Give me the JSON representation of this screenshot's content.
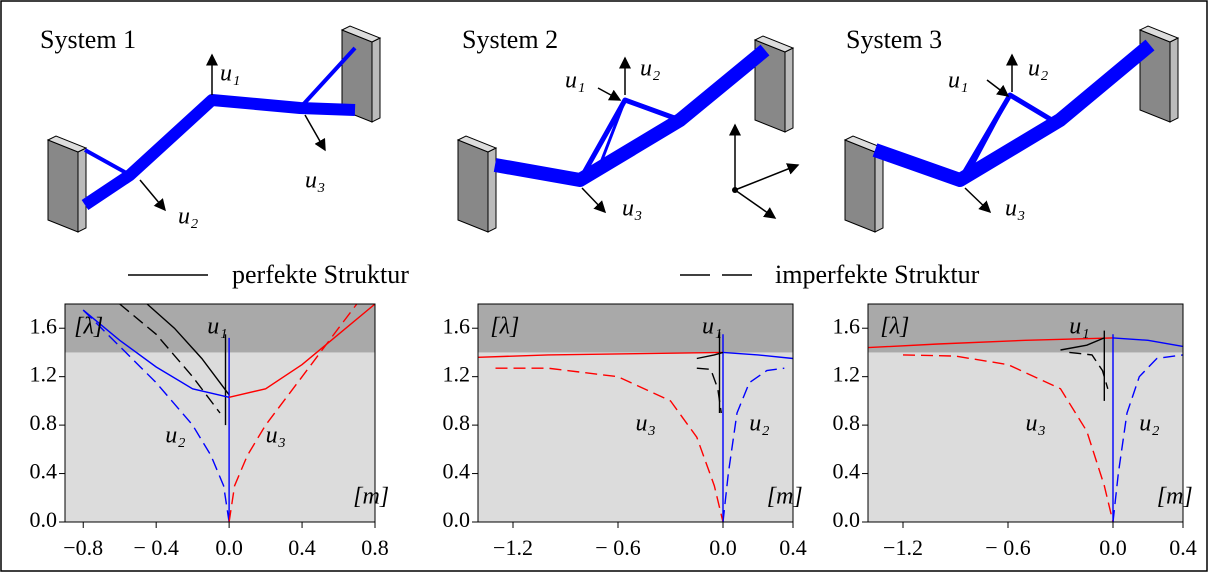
{
  "illustrations": [
    {
      "title": "System 1",
      "labels": [
        "u₁",
        "u₂",
        "u₃"
      ]
    },
    {
      "title": "System 2",
      "labels": [
        "u₁",
        "u₂",
        "u₃"
      ]
    },
    {
      "title": "System 3",
      "labels": [
        "u₁",
        "u₂",
        "u₃"
      ]
    }
  ],
  "legend": {
    "solid": "perfekte Struktur",
    "dashed": "imperfekte Struktur"
  },
  "chart_data": [
    {
      "type": "line",
      "xlim": [
        -0.9,
        0.8
      ],
      "ylim": [
        0,
        1.8
      ],
      "shade_above": 1.4,
      "xticks": [
        {
          "value": -0.8,
          "label": "−0.8"
        },
        {
          "value": -0.4,
          "label": "− 0.4"
        },
        {
          "value": 0,
          "label": "0.0"
        },
        {
          "value": 0.4,
          "label": "0.4"
        },
        {
          "value": 0.8,
          "label": "0.8"
        }
      ],
      "yticks": [
        {
          "value": 0,
          "label": "0.0"
        },
        {
          "value": 0.4,
          "label": "0.4"
        },
        {
          "value": 0.8,
          "label": "0.8"
        },
        {
          "value": 1.2,
          "label": "1.2"
        },
        {
          "value": 1.6,
          "label": "1.6"
        }
      ],
      "series": [
        {
          "color": "#000000",
          "dash": false,
          "x": [
            -0.45,
            -0.3,
            -0.15,
            -0.05,
            0
          ],
          "values": [
            1.8,
            1.6,
            1.35,
            1.15,
            1.05
          ]
        },
        {
          "color": "#000000",
          "dash": false,
          "x": [
            -0.02,
            -0.02
          ],
          "values": [
            0.8,
            1.55
          ]
        },
        {
          "color": "#0000ff",
          "dash": false,
          "x": [
            -0.8,
            -0.6,
            -0.4,
            -0.2,
            0
          ],
          "values": [
            1.75,
            1.5,
            1.28,
            1.1,
            1.03
          ]
        },
        {
          "color": "#0000ff",
          "dash": false,
          "x": [
            0,
            0
          ],
          "values": [
            0,
            1.52
          ]
        },
        {
          "color": "#ff0000",
          "dash": false,
          "x": [
            0,
            0.2,
            0.4,
            0.6,
            0.8
          ],
          "values": [
            1.03,
            1.1,
            1.3,
            1.55,
            1.8
          ]
        },
        {
          "color": "#000000",
          "dash": true,
          "x": [
            -0.6,
            -0.4,
            -0.2,
            -0.05
          ],
          "values": [
            1.8,
            1.55,
            1.2,
            0.9
          ]
        },
        {
          "color": "#0000ff",
          "dash": true,
          "x": [
            -0.8,
            -0.6,
            -0.4,
            -0.2,
            -0.1,
            -0.03,
            0
          ],
          "values": [
            1.75,
            1.45,
            1.15,
            0.8,
            0.55,
            0.3,
            0
          ]
        },
        {
          "color": "#ff0000",
          "dash": true,
          "x": [
            0,
            0.03,
            0.1,
            0.2,
            0.4,
            0.6,
            0.7
          ],
          "values": [
            0,
            0.3,
            0.55,
            0.8,
            1.2,
            1.6,
            1.8
          ]
        }
      ],
      "annotations": [
        {
          "text": "[λ]",
          "x": -0.85,
          "y": 1.6
        },
        {
          "text": "[m]",
          "x": 0.68,
          "y": 0.2
        },
        {
          "text": "u₁",
          "x": -0.12,
          "y": 1.6
        },
        {
          "text": "u₂",
          "x": -0.35,
          "y": 0.7
        },
        {
          "text": "u₃",
          "x": 0.2,
          "y": 0.7
        }
      ]
    },
    {
      "type": "line",
      "xlim": [
        -1.4,
        0.4
      ],
      "ylim": [
        0,
        1.8
      ],
      "shade_above": 1.4,
      "xticks": [
        {
          "value": -1.2,
          "label": "−1.2"
        },
        {
          "value": -0.6,
          "label": "− 0.6"
        },
        {
          "value": 0,
          "label": "0.0"
        },
        {
          "value": 0.4,
          "label": "0.4"
        }
      ],
      "yticks": [
        {
          "value": 0,
          "label": "0.0"
        },
        {
          "value": 0.4,
          "label": "0.4"
        },
        {
          "value": 0.8,
          "label": "0.8"
        },
        {
          "value": 1.2,
          "label": "1.2"
        },
        {
          "value": 1.6,
          "label": "1.6"
        }
      ],
      "series": [
        {
          "color": "#ff0000",
          "dash": false,
          "x": [
            -1.4,
            -1.0,
            -0.5,
            0
          ],
          "values": [
            1.36,
            1.38,
            1.39,
            1.4
          ]
        },
        {
          "color": "#0000ff",
          "dash": false,
          "x": [
            0,
            0.2,
            0.4
          ],
          "values": [
            1.4,
            1.38,
            1.35
          ]
        },
        {
          "color": "#0000ff",
          "dash": false,
          "x": [
            0,
            0
          ],
          "values": [
            0,
            1.55
          ]
        },
        {
          "color": "#000000",
          "dash": false,
          "x": [
            -0.15,
            -0.05,
            0
          ],
          "values": [
            1.35,
            1.38,
            1.4
          ]
        },
        {
          "color": "#000000",
          "dash": false,
          "x": [
            -0.02,
            -0.02
          ],
          "values": [
            0.9,
            1.57
          ]
        },
        {
          "color": "#ff0000",
          "dash": true,
          "x": [
            -1.3,
            -1.0,
            -0.6,
            -0.3,
            -0.15,
            -0.05,
            0
          ],
          "values": [
            1.27,
            1.27,
            1.2,
            1.0,
            0.7,
            0.3,
            0
          ]
        },
        {
          "color": "#0000ff",
          "dash": true,
          "x": [
            0,
            0.03,
            0.08,
            0.15,
            0.25,
            0.35
          ],
          "values": [
            0,
            0.4,
            0.9,
            1.15,
            1.25,
            1.27
          ]
        },
        {
          "color": "#000000",
          "dash": true,
          "x": [
            -0.15,
            -0.07,
            -0.03,
            -0.01
          ],
          "values": [
            1.27,
            1.26,
            1.1,
            0.9
          ]
        }
      ],
      "annotations": [
        {
          "text": "[λ]",
          "x": -1.33,
          "y": 1.6
        },
        {
          "text": "[m]",
          "x": 0.25,
          "y": 0.2
        },
        {
          "text": "u₁",
          "x": -0.12,
          "y": 1.6
        },
        {
          "text": "u₃",
          "x": -0.5,
          "y": 0.8
        },
        {
          "text": "u₂",
          "x": 0.15,
          "y": 0.8
        }
      ]
    },
    {
      "type": "line",
      "xlim": [
        -1.4,
        0.4
      ],
      "ylim": [
        0,
        1.8
      ],
      "shade_above": 1.4,
      "xticks": [
        {
          "value": -1.2,
          "label": "−1.2"
        },
        {
          "value": -0.6,
          "label": "− 0.6"
        },
        {
          "value": 0,
          "label": "0.0"
        },
        {
          "value": 0.4,
          "label": "0.4"
        }
      ],
      "yticks": [
        {
          "value": 0,
          "label": "0.0"
        },
        {
          "value": 0.4,
          "label": "0.4"
        },
        {
          "value": 0.8,
          "label": "0.8"
        },
        {
          "value": 1.2,
          "label": "1.2"
        },
        {
          "value": 1.6,
          "label": "1.6"
        }
      ],
      "series": [
        {
          "color": "#ff0000",
          "dash": false,
          "x": [
            -1.4,
            -1.0,
            -0.5,
            0
          ],
          "values": [
            1.44,
            1.47,
            1.5,
            1.52
          ]
        },
        {
          "color": "#0000ff",
          "dash": false,
          "x": [
            0,
            0.2,
            0.4
          ],
          "values": [
            1.52,
            1.5,
            1.45
          ]
        },
        {
          "color": "#0000ff",
          "dash": false,
          "x": [
            0,
            0
          ],
          "values": [
            0,
            1.55
          ]
        },
        {
          "color": "#000000",
          "dash": false,
          "x": [
            -0.3,
            -0.15,
            -0.05
          ],
          "values": [
            1.42,
            1.46,
            1.52
          ]
        },
        {
          "color": "#000000",
          "dash": false,
          "x": [
            -0.05,
            -0.05
          ],
          "values": [
            1.0,
            1.58
          ]
        },
        {
          "color": "#ff0000",
          "dash": true,
          "x": [
            -1.2,
            -0.9,
            -0.6,
            -0.3,
            -0.15,
            -0.05,
            0
          ],
          "values": [
            1.38,
            1.37,
            1.3,
            1.1,
            0.75,
            0.3,
            0
          ]
        },
        {
          "color": "#0000ff",
          "dash": true,
          "x": [
            0,
            0.03,
            0.08,
            0.15,
            0.25,
            0.4
          ],
          "values": [
            0,
            0.4,
            0.9,
            1.2,
            1.35,
            1.38
          ]
        },
        {
          "color": "#000000",
          "dash": true,
          "x": [
            -0.25,
            -0.12,
            -0.06,
            -0.03
          ],
          "values": [
            1.4,
            1.38,
            1.25,
            1.1
          ]
        }
      ],
      "annotations": [
        {
          "text": "[λ]",
          "x": -1.33,
          "y": 1.6
        },
        {
          "text": "[m]",
          "x": 0.25,
          "y": 0.2
        },
        {
          "text": "u₁",
          "x": -0.25,
          "y": 1.6
        },
        {
          "text": "u₃",
          "x": -0.5,
          "y": 0.8
        },
        {
          "text": "u₂",
          "x": 0.15,
          "y": 0.8
        }
      ]
    }
  ]
}
